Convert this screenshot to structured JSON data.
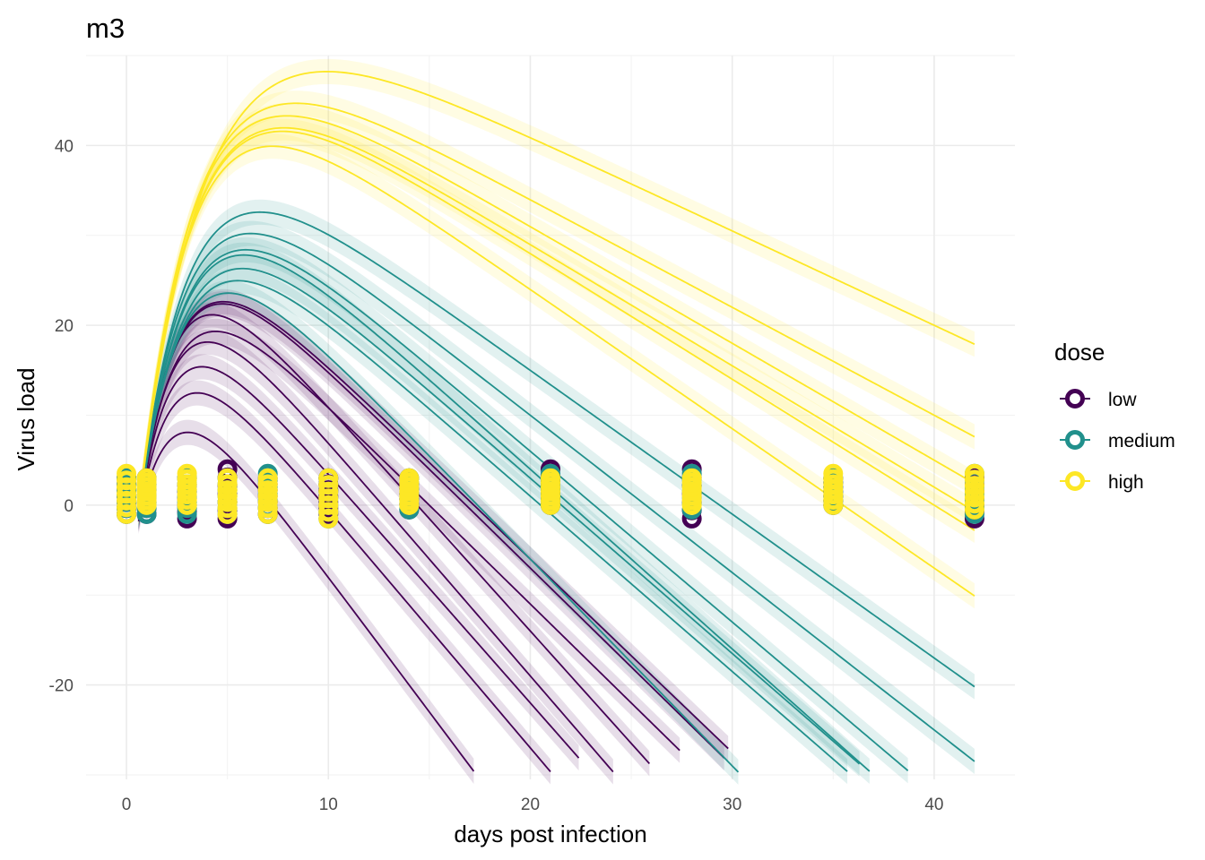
{
  "chart_data": {
    "type": "line",
    "title": "m3",
    "xlabel": "days post infection",
    "ylabel": "Virus load",
    "xlim": [
      -2,
      44
    ],
    "ylim": [
      -30.5,
      50
    ],
    "x_ticks": [
      0,
      10,
      20,
      30,
      40
    ],
    "y_ticks": [
      -20,
      0,
      20,
      40
    ],
    "grid": true,
    "legend": {
      "title": "dose",
      "position": "right",
      "entries": [
        "low",
        "medium",
        "high"
      ]
    },
    "colors": {
      "low": "#440154",
      "medium": "#21908C",
      "high": "#FDE725"
    },
    "curve_model": "load(t) = A*(1 - exp(-(t - t0)/tau)) - b*t",
    "series": [
      {
        "name": "low",
        "curves": [
          {
            "A": 22,
            "b": 3.0,
            "tau": 1.6,
            "t0": 0.6,
            "xend": 17.3
          },
          {
            "A": 26,
            "b": 2.65,
            "tau": 1.6,
            "t0": 0.6,
            "xend": 21.8
          },
          {
            "A": 29,
            "b": 2.55,
            "tau": 1.6,
            "t0": 0.6,
            "xend": 22.4
          },
          {
            "A": 33,
            "b": 2.6,
            "tau": 1.7,
            "t0": 0.6,
            "xend": 24.3
          },
          {
            "A": 36,
            "b": 2.5,
            "tau": 1.7,
            "t0": 0.6,
            "xend": 25.9
          },
          {
            "A": 33,
            "b": 2.2,
            "tau": 1.8,
            "t0": 0.6,
            "xend": 27.4
          },
          {
            "A": 37,
            "b": 2.2,
            "tau": 1.9,
            "t0": 0.6,
            "xend": 29.6
          },
          {
            "A": 37,
            "b": 2.15,
            "tau": 1.9,
            "t0": 0.6,
            "xend": 29.8
          }
        ]
      },
      {
        "name": "medium",
        "curves": [
          {
            "A": 40,
            "b": 2.3,
            "tau": 2.1,
            "t0": 0.6,
            "xend": 31.0
          },
          {
            "A": 40,
            "b": 1.95,
            "tau": 2.2,
            "t0": 0.6,
            "xend": 35.9
          },
          {
            "A": 42,
            "b": 1.95,
            "tau": 2.3,
            "t0": 0.6,
            "xend": 36.3
          },
          {
            "A": 44,
            "b": 2.0,
            "tau": 2.3,
            "t0": 0.6,
            "xend": 38.2
          },
          {
            "A": 44,
            "b": 1.9,
            "tau": 2.3,
            "t0": 0.6,
            "xend": 39.0
          },
          {
            "A": 45,
            "b": 1.75,
            "tau": 2.3,
            "t0": 0.6,
            "xend": 42
          },
          {
            "A": 47,
            "b": 1.6,
            "tau": 2.4,
            "t0": 0.6,
            "xend": 42
          }
        ]
      },
      {
        "name": "high",
        "curves": [
          {
            "A": 55,
            "b": 1.55,
            "tau": 2.5,
            "t0": 0.6,
            "xend": 42
          },
          {
            "A": 56,
            "b": 1.35,
            "tau": 2.6,
            "t0": 0.6,
            "xend": 42
          },
          {
            "A": 56,
            "b": 1.4,
            "tau": 2.6,
            "t0": 0.6,
            "xend": 42
          },
          {
            "A": 57,
            "b": 1.3,
            "tau": 2.6,
            "t0": 0.6,
            "xend": 42
          },
          {
            "A": 58,
            "b": 1.2,
            "tau": 2.7,
            "t0": 0.6,
            "xend": 42
          },
          {
            "A": 62,
            "b": 1.05,
            "tau": 3.2,
            "t0": 0.6,
            "xend": 42
          }
        ]
      }
    ],
    "observations": {
      "low": {
        "days": [
          0,
          1,
          3,
          5,
          7,
          10,
          14,
          21,
          28,
          35,
          42
        ],
        "ymin": [
          -1,
          -1,
          -1.5,
          -1.5,
          -1,
          -1,
          -0.5,
          0,
          -1.5,
          0,
          -1.5
        ],
        "ymax": [
          3,
          3,
          3,
          4,
          3,
          3,
          3,
          4,
          4,
          3,
          3
        ]
      },
      "medium": {
        "days": [
          0,
          1,
          3,
          5,
          7,
          10,
          14,
          21,
          28,
          35,
          42
        ],
        "ymin": [
          -1,
          -1,
          -1,
          -1,
          -1,
          -1.5,
          -0.5,
          0,
          -0.5,
          0,
          -1
        ],
        "ymax": [
          3,
          3,
          3,
          3,
          3.5,
          3,
          3,
          3.5,
          3.5,
          3,
          3.5
        ]
      },
      "high": {
        "days": [
          0,
          1,
          3,
          5,
          7,
          10,
          14,
          21,
          28,
          35,
          42
        ],
        "ymin": [
          -1,
          0,
          0,
          -1,
          -1,
          -1.5,
          0,
          0,
          0,
          0,
          -0.5
        ],
        "ymax": [
          3.5,
          3,
          3.5,
          3,
          3,
          3,
          3,
          3,
          3,
          3.5,
          3.5
        ]
      }
    }
  }
}
